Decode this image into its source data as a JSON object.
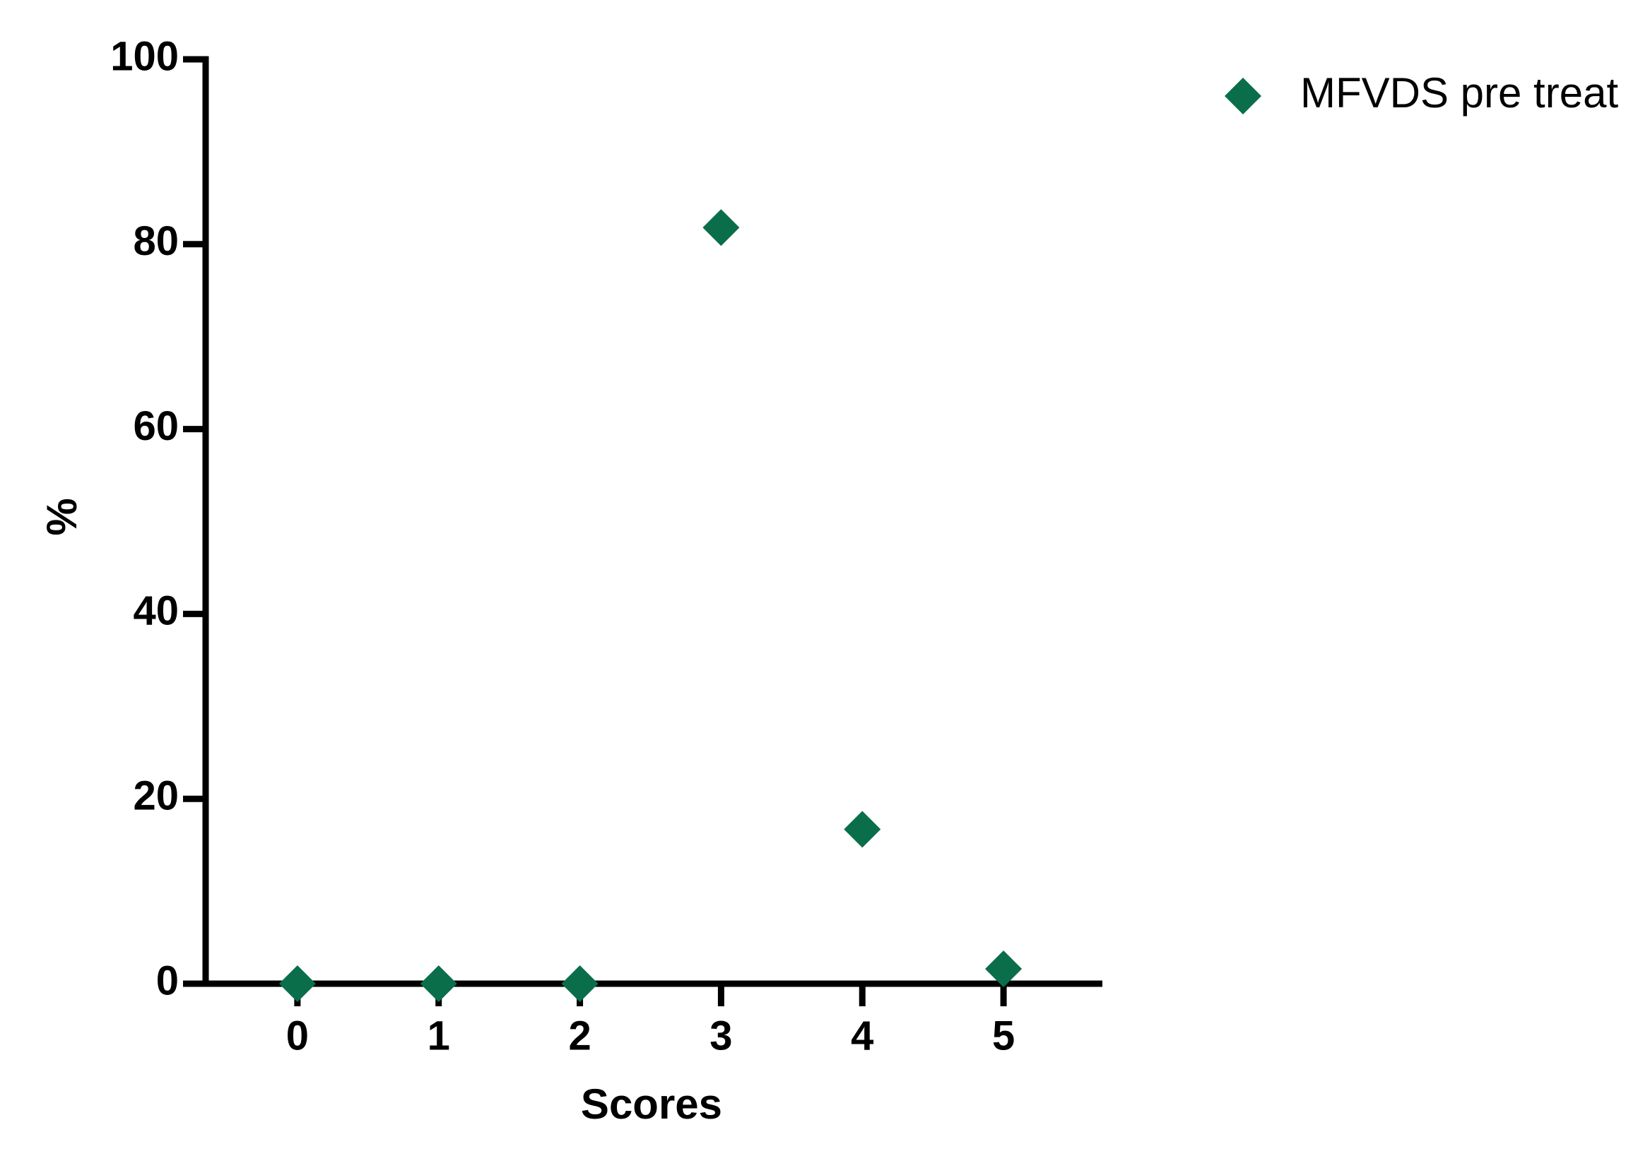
{
  "chart_data": {
    "type": "scatter",
    "x_label": "Scores",
    "y_label": "%",
    "x": [
      0,
      1,
      2,
      3,
      4,
      5
    ],
    "series": [
      {
        "name": "MFVDS pre treat",
        "color": "#0a6e4a",
        "values": [
          0,
          0,
          0,
          81.8,
          16.7,
          1.6
        ]
      }
    ],
    "xlim": [
      -0.65,
      5.7
    ],
    "xticks": [
      0,
      1,
      2,
      3,
      4,
      5
    ],
    "ylim": [
      0,
      100
    ],
    "yticks": [
      0,
      20,
      40,
      60,
      80,
      100
    ],
    "grid": false,
    "legend": "top-right",
    "marker": "diamond"
  }
}
